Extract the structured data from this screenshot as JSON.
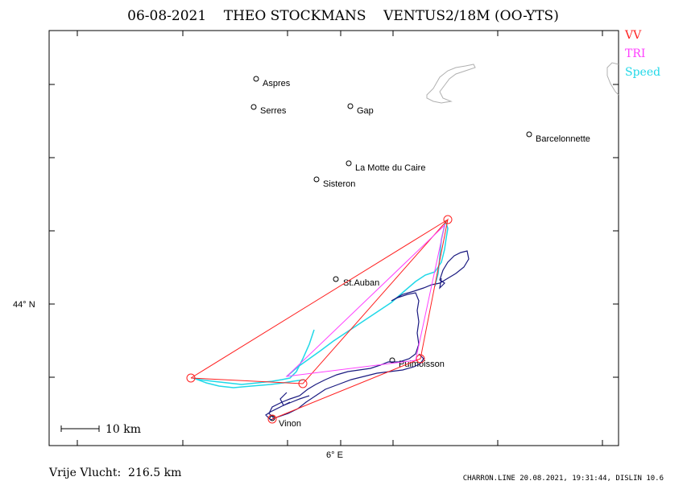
{
  "title": "06-08-2021    THEO STOCKMANS    VENTUS2/18M (OO-YTS)",
  "legend": [
    {
      "label": "VV",
      "color": "#ff2020"
    },
    {
      "label": "TRI",
      "color": "#ff40ff"
    },
    {
      "label": "Speed",
      "color": "#20d8e8"
    }
  ],
  "axes": {
    "lat_label": "44° N",
    "lon_label": "6° E"
  },
  "scale_bar": "10 km",
  "footer": {
    "distance": "Vrije Vlucht:  216.5 km",
    "credits": "CHARRON.LINE 20.08.2021, 19:31:44, DISLIN 10.6"
  },
  "towns": [
    {
      "name": "Aspres"
    },
    {
      "name": "Serres"
    },
    {
      "name": "Gap"
    },
    {
      "name": "Barcelonnette"
    },
    {
      "name": "La Motte du Caire"
    },
    {
      "name": "Sisteron"
    },
    {
      "name": "St.Auban"
    },
    {
      "name": "Puimoisson"
    },
    {
      "name": "Vinon"
    }
  ],
  "colors": {
    "track": "#1a1a80",
    "vv": "#ff2020",
    "tri": "#ff40ff",
    "speed": "#20d8e8",
    "lake": "#b0b0b0"
  }
}
